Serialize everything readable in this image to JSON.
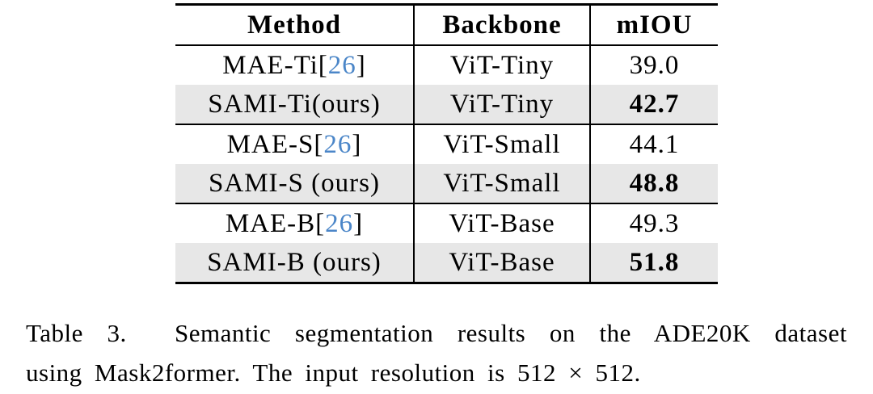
{
  "colors": {
    "citation_blue": "#4b86c8",
    "row_highlight": "#e7e7e7",
    "rule_black": "#000000",
    "page_background": "#ffffff"
  },
  "table": {
    "headers": [
      "Method",
      "Backbone",
      "mIOU"
    ],
    "rows": [
      {
        "method_pre": "MAE-Ti[",
        "cite": "26",
        "method_post": "]",
        "backbone": "ViT-Tiny",
        "miou": "39.0"
      },
      {
        "method_pre": "SAMI-Ti(ours)",
        "backbone": "ViT-Tiny",
        "miou": "42.7"
      },
      {
        "method_pre": "MAE-S[",
        "cite": "26",
        "method_post": "]",
        "backbone": "ViT-Small",
        "miou": "44.1"
      },
      {
        "method_pre": "SAMI-S (ours)",
        "backbone": "ViT-Small",
        "miou": "48.8"
      },
      {
        "method_pre": "MAE-B[",
        "cite": "26",
        "method_post": "]",
        "backbone": "ViT-Base",
        "miou": "49.3"
      },
      {
        "method_pre": "SAMI-B (ours)",
        "backbone": "ViT-Base",
        "miou": "51.8"
      }
    ]
  },
  "caption": {
    "lines": [
      "Table 3.  Semantic segmentation results on the ADE20K dataset",
      "using Mask2former. The input resolution is 512 × 512."
    ]
  }
}
